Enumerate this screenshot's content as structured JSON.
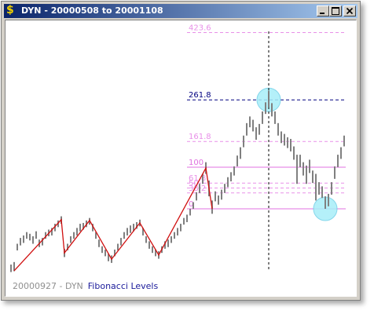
{
  "window": {
    "title": "DYN - 20000508 to 20001108",
    "icon": "$"
  },
  "chart_data": {
    "type": "ohlc-fib",
    "bar_color": "#808080",
    "bars": [
      [
        -152,
        -134
      ],
      [
        -150,
        -128
      ],
      [
        -100,
        -84
      ],
      [
        -88,
        -70
      ],
      [
        -82,
        -64
      ],
      [
        -72,
        -56
      ],
      [
        -76,
        -60
      ],
      [
        -84,
        -66
      ],
      [
        -72,
        -54
      ],
      [
        -92,
        -74
      ],
      [
        -88,
        -70
      ],
      [
        -72,
        -56
      ],
      [
        -66,
        -50
      ],
      [
        -64,
        -46
      ],
      [
        -54,
        -36
      ],
      [
        -44,
        -28
      ],
      [
        -36,
        -18
      ],
      [
        -116,
        -96
      ],
      [
        -100,
        -84
      ],
      [
        -82,
        -66
      ],
      [
        -72,
        -56
      ],
      [
        -64,
        -46
      ],
      [
        -54,
        -36
      ],
      [
        -50,
        -34
      ],
      [
        -44,
        -28
      ],
      [
        -38,
        -22
      ],
      [
        -54,
        -36
      ],
      [
        -72,
        -56
      ],
      [
        -92,
        -74
      ],
      [
        -106,
        -90
      ],
      [
        -114,
        -98
      ],
      [
        -126,
        -108
      ],
      [
        -130,
        -112
      ],
      [
        -114,
        -98
      ],
      [
        -100,
        -84
      ],
      [
        -88,
        -70
      ],
      [
        -72,
        -56
      ],
      [
        -64,
        -46
      ],
      [
        -58,
        -40
      ],
      [
        -54,
        -36
      ],
      [
        -48,
        -32
      ],
      [
        -42,
        -26
      ],
      [
        -64,
        -46
      ],
      [
        -82,
        -66
      ],
      [
        -96,
        -78
      ],
      [
        -106,
        -90
      ],
      [
        -114,
        -98
      ],
      [
        -120,
        -102
      ],
      [
        -106,
        -90
      ],
      [
        -96,
        -78
      ],
      [
        -92,
        -74
      ],
      [
        -82,
        -66
      ],
      [
        -72,
        -56
      ],
      [
        -64,
        -46
      ],
      [
        -54,
        -36
      ],
      [
        -38,
        -22
      ],
      [
        -32,
        -14
      ],
      [
        -16,
        0
      ],
      [
        0,
        16
      ],
      [
        20,
        40
      ],
      [
        38,
        60
      ],
      [
        60,
        84
      ],
      [
        84,
        112
      ],
      [
        30,
        68
      ],
      [
        -12,
        20
      ],
      [
        18,
        42
      ],
      [
        10,
        32
      ],
      [
        22,
        46
      ],
      [
        38,
        60
      ],
      [
        52,
        76
      ],
      [
        66,
        88
      ],
      [
        80,
        102
      ],
      [
        102,
        128
      ],
      [
        120,
        148
      ],
      [
        148,
        176
      ],
      [
        176,
        206
      ],
      [
        196,
        222
      ],
      [
        186,
        214
      ],
      [
        166,
        196
      ],
      [
        178,
        204
      ],
      [
        204,
        234
      ],
      [
        228,
        256
      ],
      [
        244,
        284
      ],
      [
        222,
        254
      ],
      [
        204,
        234
      ],
      [
        176,
        206
      ],
      [
        158,
        186
      ],
      [
        152,
        180
      ],
      [
        146,
        172
      ],
      [
        138,
        168
      ],
      [
        118,
        150
      ],
      [
        60,
        130
      ],
      [
        100,
        130
      ],
      [
        80,
        112
      ],
      [
        60,
        104
      ],
      [
        86,
        118
      ],
      [
        62,
        92
      ],
      [
        20,
        84
      ],
      [
        34,
        64
      ],
      [
        26,
        54
      ],
      [
        0,
        30
      ],
      [
        6,
        36
      ],
      [
        34,
        64
      ],
      [
        72,
        102
      ],
      [
        100,
        130
      ],
      [
        120,
        148
      ],
      [
        150,
        176
      ]
    ],
    "zigzag": {
      "color": "#d01010",
      "points": [
        [
          1,
          -149
        ],
        [
          16,
          -26
        ],
        [
          17,
          -106
        ],
        [
          25,
          -28
        ],
        [
          32,
          -121
        ],
        [
          41,
          -34
        ],
        [
          47,
          -111
        ],
        [
          62,
          98
        ],
        [
          64,
          0
        ]
      ]
    },
    "levels": [
      {
        "value": 423.6,
        "color": "#e890e8",
        "dashed": true
      },
      {
        "value": 261.8,
        "color": "#000080",
        "dashed": true
      },
      {
        "value": 161.8,
        "color": "#e890e8",
        "dashed": true
      },
      {
        "value": 100,
        "color": "#e070e0",
        "dashed": false
      },
      {
        "value": 61.8,
        "color": "#e890e8",
        "dashed": true
      },
      {
        "value": 50,
        "color": "#e890e8",
        "dashed": true
      },
      {
        "value": 38.2,
        "color": "#e890e8",
        "dashed": true
      },
      {
        "value": 0,
        "color": "#e070e0",
        "dashed": false
      }
    ],
    "marker_line": {
      "index": 82,
      "color": "#000000"
    },
    "highlight_color": "#a8eef8",
    "highlights": [
      {
        "index": 82,
        "value": 261.8
      },
      {
        "index": 100,
        "value": 0
      }
    ]
  },
  "status": {
    "date": "20000927 - DYN",
    "study": "Fibonacci Levels"
  }
}
